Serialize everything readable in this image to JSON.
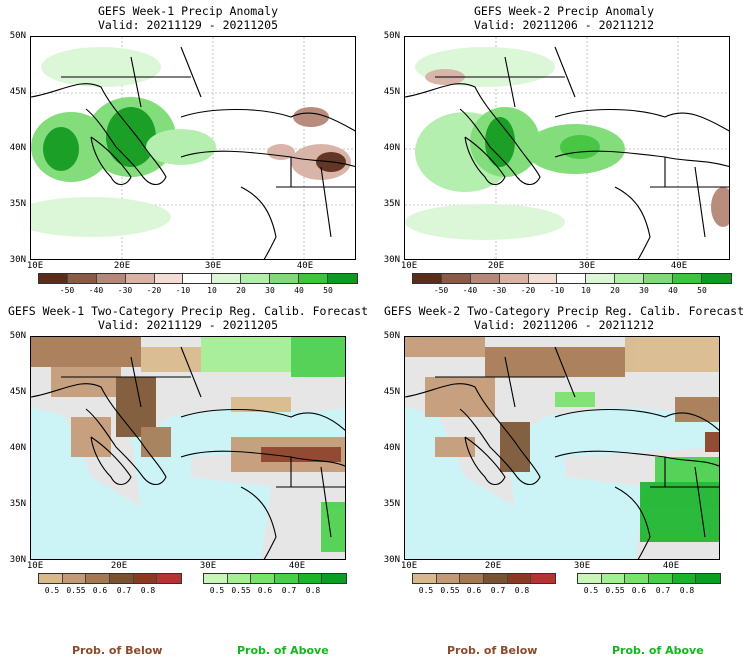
{
  "panels": [
    {
      "title": "GEFS Week-1 Precip Anomaly",
      "valid": "Valid: 20211129 - 20211205"
    },
    {
      "title": "GEFS Week-2 Precip Anomaly",
      "valid": "Valid: 20211206 - 20211212"
    },
    {
      "title": "GEFS Week-1 Two-Category Precip Reg. Calib. Forecast",
      "valid": "Valid: 20211129 - 20211205"
    },
    {
      "title": "GEFS Week-2 Two-Category Precip Reg. Calib. Forecast",
      "valid": "Valid: 20211206 - 20211212"
    }
  ],
  "lat_labels": [
    "50N",
    "45N",
    "40N",
    "35N",
    "30N"
  ],
  "lon_labels": [
    "10E",
    "20E",
    "30E",
    "40E"
  ],
  "anomaly_colorbar": {
    "ticks": [
      "-50",
      "-40",
      "-30",
      "-20",
      "-10",
      "10",
      "20",
      "30",
      "40",
      "50"
    ],
    "colors": [
      "#5b2c1a",
      "#8b5a44",
      "#b48777",
      "#d8b2a5",
      "#f2dcd4",
      "#ffffff",
      "#dbf7d6",
      "#b2efab",
      "#7ddc74",
      "#3fc43a",
      "#0f9a1c"
    ]
  },
  "prob_colorbar": {
    "below_ticks": [
      "0.5",
      "0.55",
      "0.6",
      "0.7",
      "0.8"
    ],
    "above_ticks": [
      "0.5",
      "0.55",
      "0.6",
      "0.7",
      "0.8"
    ],
    "below_colors": [
      "#d9b98a",
      "#c49a74",
      "#a67850",
      "#7a5230",
      "#8a3a20",
      "#b83232"
    ],
    "above_colors": [
      "#c8f7b8",
      "#a3ef93",
      "#78e26a",
      "#48d04a",
      "#17b52a",
      "#07a022"
    ]
  },
  "legend": {
    "below": "Prob. of Below",
    "above": "Prob. of Above"
  },
  "colors": {
    "sea": "#ccf4f7",
    "land_gray": "#e6e6e6",
    "below_text": "#8b4a2b",
    "above_text": "#12b81b"
  }
}
